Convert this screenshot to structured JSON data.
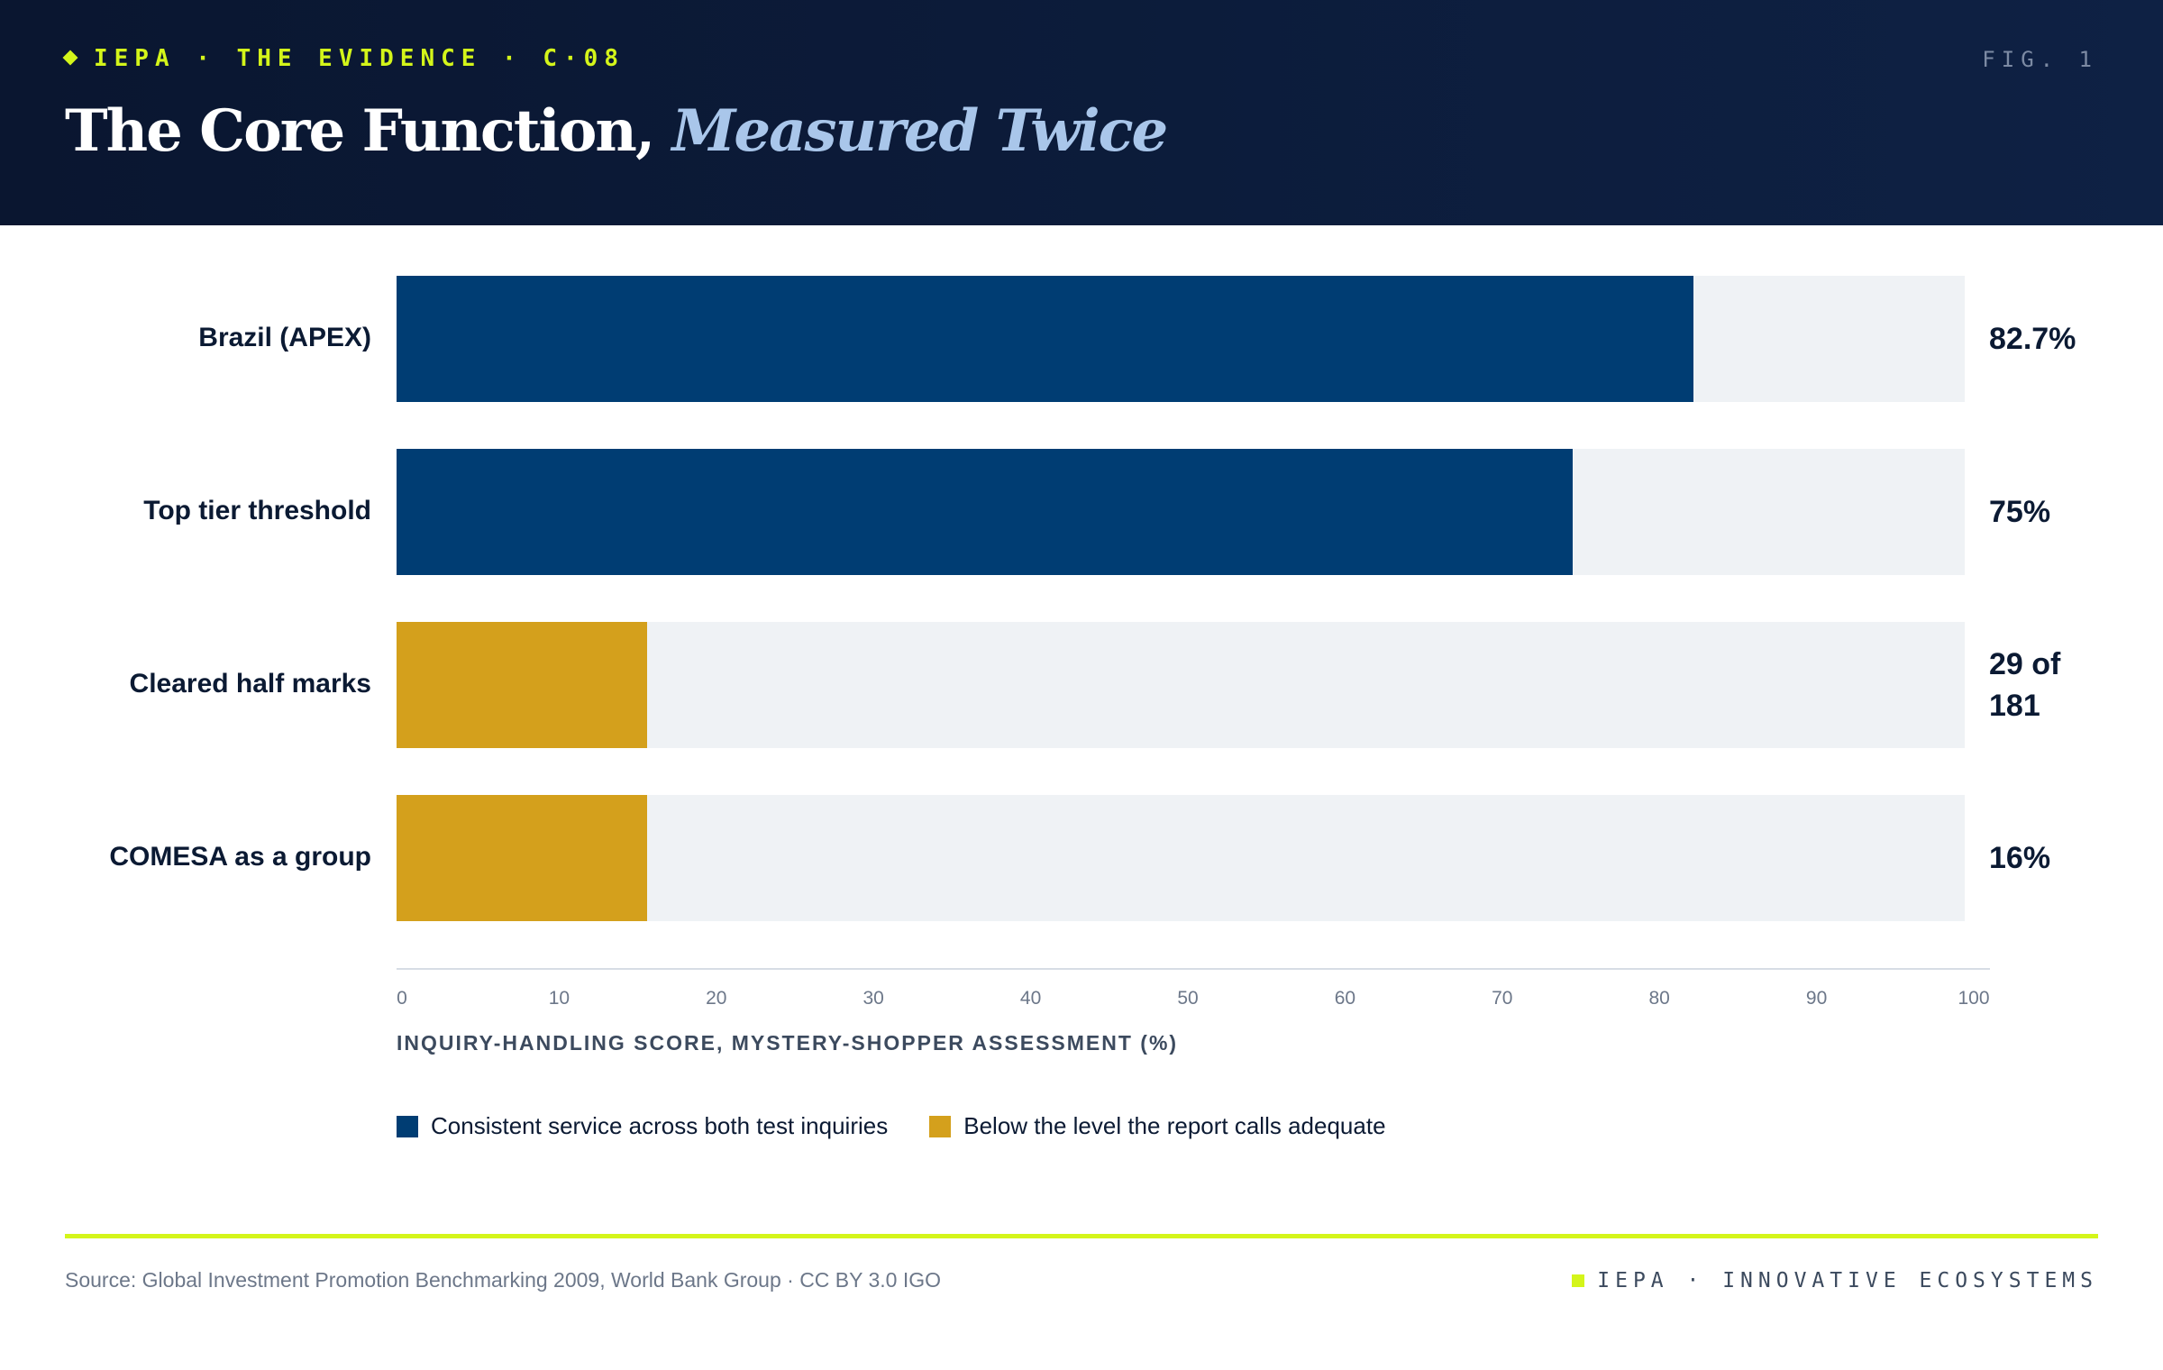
{
  "header": {
    "kicker": "IEPA · THE EVIDENCE · C·08",
    "fig_label": "FIG. 1",
    "title_main": "The Core Function,",
    "title_accent": "Measured Twice"
  },
  "colors": {
    "primary": "#003d73",
    "warning": "#d4a01c",
    "track": "#eff2f5",
    "accent": "#d4f51a",
    "header_bg": "#0a1630"
  },
  "chart_data": {
    "type": "bar",
    "orientation": "horizontal",
    "categories": [
      "Brazil (APEX)",
      "Top tier threshold",
      "Cleared half marks",
      "COMESA as a group"
    ],
    "values": [
      82.7,
      75,
      16,
      16
    ],
    "value_labels": [
      "82.7%",
      "75%",
      "29 of\n181",
      "16%"
    ],
    "bar_group": [
      "consistent",
      "consistent",
      "below",
      "below"
    ],
    "xlim": [
      0,
      100
    ],
    "xticks": [
      0,
      10,
      20,
      30,
      40,
      50,
      60,
      70,
      80,
      90,
      100
    ],
    "xlabel": "INQUIRY-HANDLING SCORE, MYSTERY-SHOPPER ASSESSMENT (%)",
    "legend": [
      {
        "key": "consistent",
        "label": "Consistent service across both test inquiries",
        "color": "#003d73"
      },
      {
        "key": "below",
        "label": "Below the level the report calls adequate",
        "color": "#d4a01c"
      }
    ],
    "legend_position": "bottom-left",
    "grid": false
  },
  "footer": {
    "source": "Source: Global Investment Promotion Benchmarking 2009, World Bank Group · CC BY 3.0 IGO",
    "brand": "IEPA · INNOVATIVE ECOSYSTEMS"
  }
}
